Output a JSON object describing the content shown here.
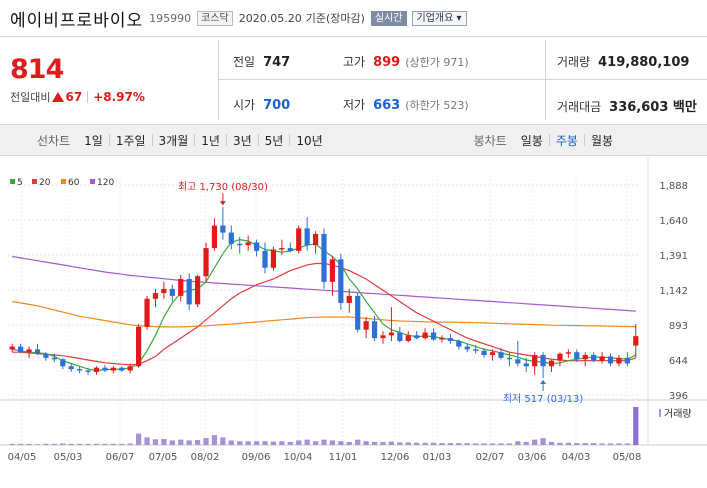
{
  "header": {
    "name": "에이비프로바이오",
    "code": "195990",
    "market": "코스닥",
    "date": "2020.05.20",
    "basis": "기준(장마감)",
    "realtime_label": "실시간",
    "company_label": "기업개요 ▾"
  },
  "price": {
    "current": "814",
    "change_label": "전일대비",
    "change_value": "67",
    "change_pct": "+8.97%"
  },
  "stats": {
    "prev_close_label": "전일",
    "prev_close": "747",
    "high_label": "고가",
    "high": "899",
    "upper_limit": "(상한가 971)",
    "volume_label": "거래량",
    "volume": "419,880,109",
    "open_label": "시가",
    "open": "700",
    "low_label": "저가",
    "low": "663",
    "lower_limit": "(하한가 523)",
    "amount_label": "거래대금",
    "amount": "336,603 백만"
  },
  "tabs": {
    "line_label": "선차트",
    "line_tabs": [
      "1일",
      "1주일",
      "3개월",
      "1년",
      "3년",
      "5년",
      "10년"
    ],
    "candle_label": "봉차트",
    "candle_tabs": [
      "일봉",
      "주봉",
      "월봉"
    ],
    "active_candle": "주봉"
  },
  "colors": {
    "up": "#e01b1b",
    "down": "#2f6fd8",
    "ma5": "#3aa93a",
    "ma20": "#e03c3c",
    "ma60": "#f08a1c",
    "ma120": "#a35bd0",
    "volume": "#a491d6"
  },
  "chart_data": {
    "type": "candlestick",
    "legend": [
      {
        "name": "5",
        "color": "#3aa93a"
      },
      {
        "name": "20",
        "color": "#e03c3c"
      },
      {
        "name": "60",
        "color": "#f08a1c"
      },
      {
        "name": "120",
        "color": "#a35bd0"
      }
    ],
    "yticks": [
      396,
      644,
      893,
      1142,
      1391,
      1640,
      1888
    ],
    "ylim": [
      396,
      1888
    ],
    "xticks": [
      "04/05",
      "05/03",
      "06/07",
      "07/05",
      "08/02",
      "09/06",
      "10/04",
      "11/01",
      "12/06",
      "01/03",
      "02/07",
      "03/06",
      "04/03",
      "05/08"
    ],
    "annotations": {
      "max": "최고 1,730 (08/30)",
      "min": "최저 517 (03/13)"
    },
    "volume_label": "거래량",
    "candles": [
      [
        720,
        760,
        700,
        740
      ],
      [
        740,
        760,
        690,
        700
      ],
      [
        700,
        740,
        660,
        720
      ],
      [
        720,
        760,
        680,
        690
      ],
      [
        690,
        700,
        640,
        660
      ],
      [
        660,
        690,
        630,
        650
      ],
      [
        650,
        660,
        580,
        600
      ],
      [
        600,
        620,
        560,
        580
      ],
      [
        580,
        600,
        550,
        570
      ],
      [
        570,
        590,
        540,
        560
      ],
      [
        560,
        600,
        540,
        590
      ],
      [
        590,
        610,
        560,
        570
      ],
      [
        570,
        600,
        550,
        590
      ],
      [
        590,
        600,
        560,
        570
      ],
      [
        570,
        620,
        550,
        600
      ],
      [
        600,
        900,
        590,
        880
      ],
      [
        880,
        1100,
        860,
        1080
      ],
      [
        1080,
        1150,
        1020,
        1120
      ],
      [
        1120,
        1200,
        1080,
        1150
      ],
      [
        1150,
        1180,
        1060,
        1100
      ],
      [
        1100,
        1250,
        1060,
        1220
      ],
      [
        1220,
        1260,
        1000,
        1040
      ],
      [
        1040,
        1250,
        1020,
        1240
      ],
      [
        1240,
        1480,
        1200,
        1440
      ],
      [
        1440,
        1650,
        1420,
        1600
      ],
      [
        1600,
        1730,
        1500,
        1550
      ],
      [
        1550,
        1600,
        1430,
        1470
      ],
      [
        1470,
        1520,
        1400,
        1460
      ],
      [
        1460,
        1530,
        1420,
        1480
      ],
      [
        1480,
        1500,
        1380,
        1420
      ],
      [
        1420,
        1480,
        1260,
        1300
      ],
      [
        1300,
        1450,
        1280,
        1430
      ],
      [
        1430,
        1500,
        1390,
        1440
      ],
      [
        1440,
        1480,
        1410,
        1420
      ],
      [
        1420,
        1600,
        1400,
        1580
      ],
      [
        1580,
        1660,
        1420,
        1460
      ],
      [
        1460,
        1560,
        1400,
        1540
      ],
      [
        1540,
        1580,
        1150,
        1200
      ],
      [
        1200,
        1380,
        1100,
        1360
      ],
      [
        1360,
        1400,
        1000,
        1050
      ],
      [
        1050,
        1150,
        980,
        1100
      ],
      [
        1100,
        1120,
        840,
        860
      ],
      [
        860,
        950,
        800,
        920
      ],
      [
        920,
        960,
        780,
        800
      ],
      [
        800,
        850,
        760,
        820
      ],
      [
        820,
        1020,
        780,
        840
      ],
      [
        840,
        880,
        770,
        780
      ],
      [
        780,
        850,
        770,
        820
      ],
      [
        820,
        850,
        790,
        800
      ],
      [
        800,
        870,
        790,
        840
      ],
      [
        840,
        870,
        780,
        790
      ],
      [
        790,
        820,
        770,
        800
      ],
      [
        800,
        830,
        760,
        780
      ],
      [
        780,
        790,
        720,
        740
      ],
      [
        740,
        760,
        700,
        720
      ],
      [
        720,
        750,
        690,
        710
      ],
      [
        710,
        730,
        660,
        680
      ],
      [
        680,
        720,
        640,
        700
      ],
      [
        700,
        730,
        650,
        660
      ],
      [
        660,
        700,
        600,
        650
      ],
      [
        650,
        780,
        600,
        620
      ],
      [
        620,
        660,
        560,
        600
      ],
      [
        600,
        700,
        540,
        680
      ],
      [
        680,
        700,
        517,
        600
      ],
      [
        600,
        650,
        560,
        640
      ],
      [
        640,
        700,
        600,
        690
      ],
      [
        690,
        720,
        660,
        700
      ],
      [
        700,
        720,
        630,
        650
      ],
      [
        650,
        700,
        600,
        680
      ],
      [
        680,
        700,
        630,
        640
      ],
      [
        640,
        700,
        620,
        670
      ],
      [
        670,
        690,
        600,
        620
      ],
      [
        620,
        680,
        600,
        660
      ],
      [
        660,
        700,
        600,
        620
      ],
      [
        747,
        899,
        663,
        814
      ]
    ],
    "ma5": [
      720,
      710,
      700,
      695,
      690,
      670,
      640,
      620,
      600,
      580,
      570,
      575,
      580,
      578,
      590,
      620,
      710,
      820,
      950,
      1050,
      1120,
      1140,
      1150,
      1200,
      1300,
      1400,
      1480,
      1500,
      1490,
      1460,
      1430,
      1420,
      1410,
      1420,
      1440,
      1460,
      1470,
      1420,
      1380,
      1320,
      1220,
      1150,
      1060,
      980,
      900,
      860,
      840,
      820,
      810,
      815,
      810,
      800,
      790,
      780,
      760,
      740,
      720,
      710,
      695,
      680,
      665,
      645,
      635,
      630,
      620,
      625,
      640,
      650,
      660,
      665,
      665,
      660,
      655,
      650,
      680
    ],
    "ma20": [
      700,
      700,
      695,
      690,
      685,
      680,
      675,
      665,
      655,
      645,
      635,
      625,
      620,
      615,
      610,
      615,
      640,
      670,
      720,
      760,
      800,
      840,
      880,
      930,
      980,
      1030,
      1080,
      1120,
      1150,
      1180,
      1200,
      1220,
      1250,
      1280,
      1300,
      1320,
      1330,
      1330,
      1320,
      1300,
      1280,
      1250,
      1220,
      1180,
      1140,
      1100,
      1060,
      1020,
      980,
      950,
      920,
      890,
      860,
      830,
      800,
      780,
      760,
      740,
      720,
      700,
      690,
      680,
      670,
      660,
      650,
      645,
      640,
      640,
      640,
      640,
      640,
      640,
      640,
      640,
      660
    ],
    "ma60": [
      1060,
      1050,
      1040,
      1030,
      1015,
      1000,
      985,
      970,
      955,
      945,
      935,
      925,
      915,
      905,
      895,
      888,
      885,
      882,
      880,
      880,
      880,
      882,
      885,
      888,
      892,
      896,
      900,
      905,
      910,
      915,
      920,
      925,
      930,
      935,
      940,
      945,
      948,
      950,
      950,
      950,
      950,
      945,
      940,
      935,
      930,
      925,
      922,
      920,
      918,
      916,
      915,
      914,
      913,
      912,
      911,
      910,
      908,
      906,
      904,
      902,
      900,
      898,
      896,
      894,
      892,
      891,
      890,
      889,
      888,
      887,
      886,
      885,
      884,
      883,
      882
    ],
    "ma120": [
      1380,
      1370,
      1360,
      1350,
      1340,
      1330,
      1320,
      1310,
      1300,
      1290,
      1280,
      1270,
      1262,
      1254,
      1246,
      1240,
      1234,
      1228,
      1222,
      1216,
      1210,
      1205,
      1200,
      1196,
      1192,
      1188,
      1184,
      1180,
      1176,
      1172,
      1168,
      1164,
      1160,
      1156,
      1152,
      1148,
      1144,
      1140,
      1136,
      1132,
      1128,
      1124,
      1120,
      1116,
      1112,
      1108,
      1104,
      1100,
      1096,
      1092,
      1088,
      1084,
      1080,
      1076,
      1072,
      1068,
      1064,
      1060,
      1056,
      1052,
      1048,
      1044,
      1040,
      1036,
      1032,
      1028,
      1024,
      1020,
      1016,
      1012,
      1008,
      1004,
      1000,
      996,
      992
    ],
    "volume": [
      3,
      3,
      3,
      2,
      3,
      3,
      4,
      3,
      3,
      3,
      3,
      3,
      3,
      3,
      4,
      30,
      20,
      15,
      16,
      12,
      14,
      12,
      13,
      18,
      26,
      20,
      12,
      10,
      10,
      10,
      10,
      9,
      10,
      8,
      12,
      14,
      10,
      14,
      12,
      10,
      8,
      14,
      10,
      8,
      8,
      9,
      7,
      7,
      6,
      6,
      6,
      5,
      5,
      5,
      5,
      4,
      4,
      4,
      4,
      4,
      10,
      8,
      14,
      18,
      8,
      6,
      6,
      5,
      5,
      5,
      4,
      4,
      4,
      4,
      100
    ]
  }
}
